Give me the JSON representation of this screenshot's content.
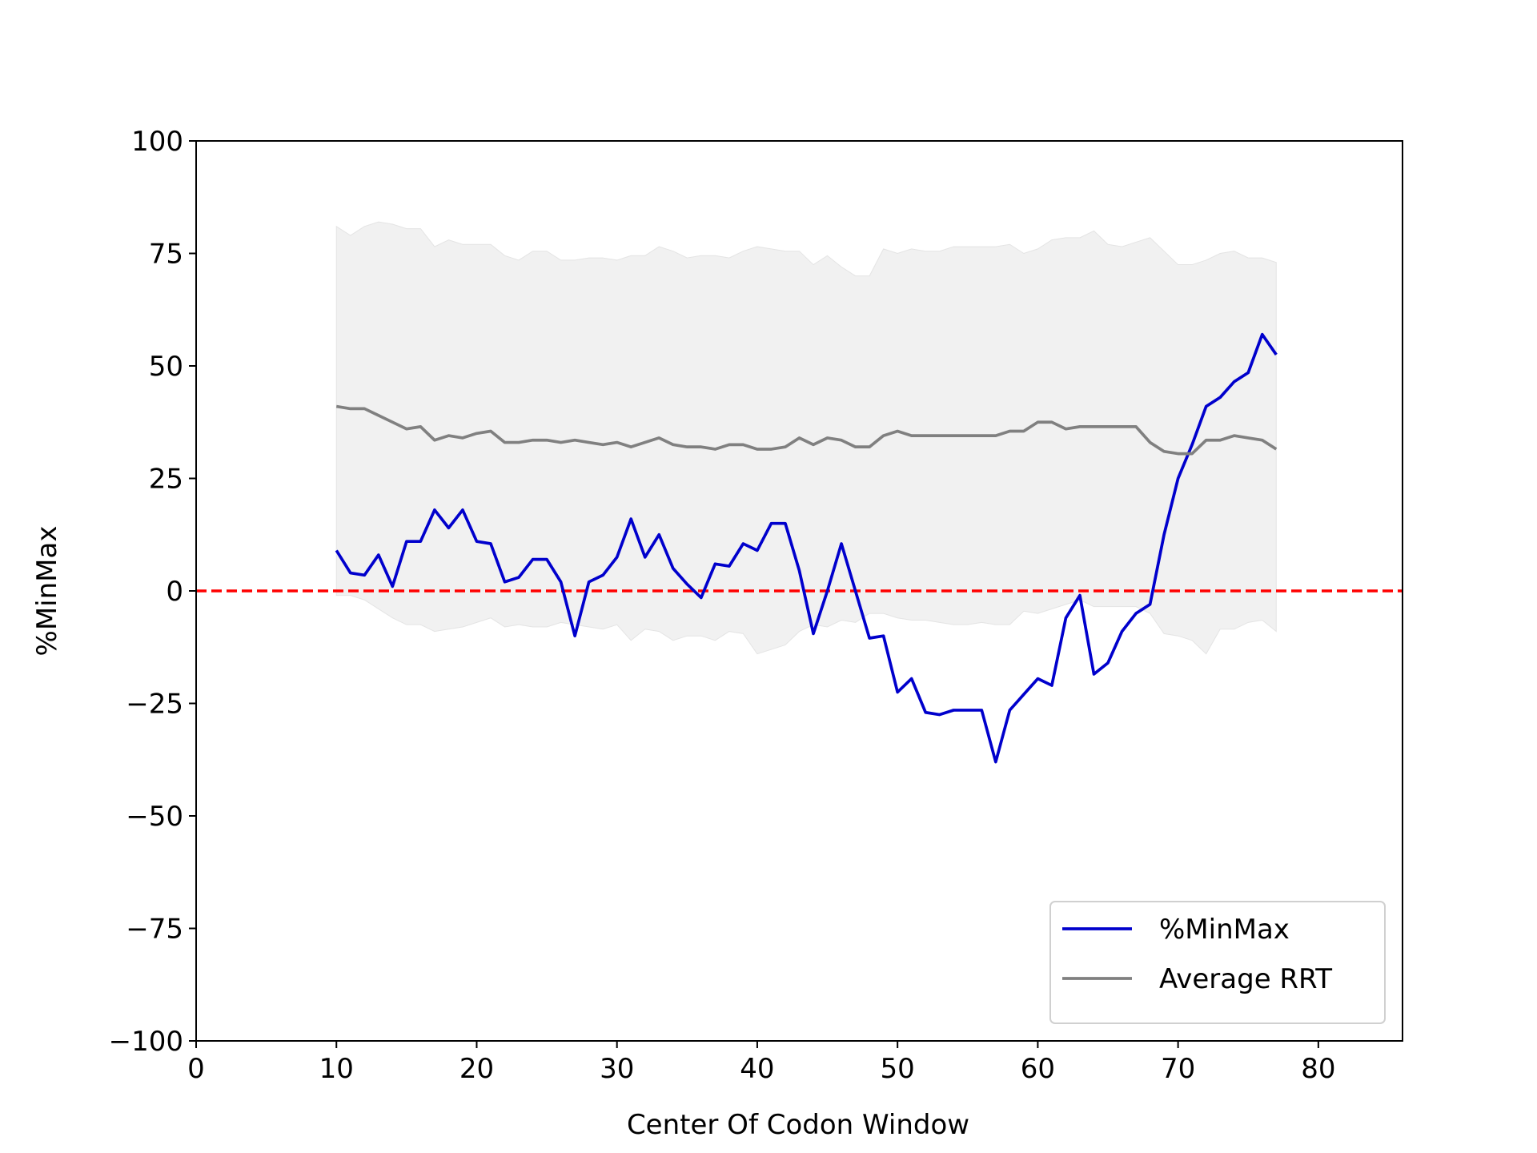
{
  "chart_data": {
    "type": "line",
    "x_label": "Center Of Codon Window",
    "y_label": "%MinMax",
    "xlim": [
      0,
      86
    ],
    "ylim": [
      -100,
      100
    ],
    "xticks": [
      0,
      10,
      20,
      30,
      40,
      50,
      60,
      70,
      80
    ],
    "yticks": [
      {
        "value": -100,
        "label": "−100"
      },
      {
        "value": -75,
        "label": "−75"
      },
      {
        "value": -50,
        "label": "−50"
      },
      {
        "value": -25,
        "label": "−25"
      },
      0,
      25,
      50,
      75,
      100
    ],
    "legend_position": "lower right",
    "x": [
      10,
      11,
      12,
      13,
      14,
      15,
      16,
      17,
      18,
      19,
      20,
      21,
      22,
      23,
      24,
      25,
      26,
      27,
      28,
      29,
      30,
      31,
      32,
      33,
      34,
      35,
      36,
      37,
      38,
      39,
      40,
      41,
      42,
      43,
      44,
      45,
      46,
      47,
      48,
      49,
      50,
      51,
      52,
      53,
      54,
      55,
      56,
      57,
      58,
      59,
      60,
      61,
      62,
      63,
      64,
      65,
      66,
      67,
      68,
      69,
      70,
      71,
      72,
      73,
      74,
      75,
      76,
      77
    ],
    "series": [
      {
        "name": "%MinMax",
        "color": "#0000cc",
        "values": [
          9,
          4,
          3.5,
          8,
          1,
          11,
          11,
          18,
          14,
          18,
          11,
          10.5,
          2,
          3,
          7,
          7,
          2,
          -10,
          2,
          3.5,
          7.5,
          16,
          7.5,
          12.5,
          5,
          1.5,
          -1.5,
          6,
          5.5,
          10.5,
          9,
          15,
          15,
          4.5,
          -9.5,
          0,
          10.5,
          0,
          -10.5,
          -10,
          -22.5,
          -19.5,
          -27,
          -27.5,
          -26.5,
          -26.5,
          -26.5,
          -38,
          -26.5,
          -23,
          -19.5,
          -21,
          -6,
          -1,
          -18.5,
          -16,
          -9,
          -5,
          -3,
          12.5,
          25,
          32.5,
          41,
          43,
          46.5,
          48.5,
          57,
          52.5
        ]
      },
      {
        "name": "Average RRT",
        "color": "#808080",
        "values": [
          41,
          40.5,
          40.5,
          39,
          37.5,
          36,
          36.5,
          33.5,
          34.5,
          34,
          35,
          35.5,
          33,
          33,
          33.5,
          33.5,
          33,
          33.5,
          33,
          32.5,
          33,
          32,
          33,
          34,
          32.5,
          32,
          32,
          31.5,
          32.5,
          32.5,
          31.5,
          31.5,
          32,
          34,
          32.5,
          34,
          33.5,
          32,
          32,
          34.5,
          35.5,
          34.5,
          34.5,
          34.5,
          34.5,
          34.5,
          34.5,
          34.5,
          35.5,
          35.5,
          37.5,
          37.5,
          36,
          36.5,
          36.5,
          36.5,
          36.5,
          36.5,
          33,
          31,
          30.5,
          30.5,
          33.5,
          33.5,
          34.5,
          34,
          33.5,
          31.5
        ]
      }
    ],
    "band": {
      "color": "#f1f1f1",
      "upper": [
        81,
        79,
        81,
        82,
        81.5,
        80.5,
        80.5,
        76.5,
        78,
        77,
        77,
        77,
        74.5,
        73.5,
        75.5,
        75.5,
        73.5,
        73.5,
        74,
        74,
        73.5,
        74.5,
        74.5,
        76.5,
        75.5,
        74,
        74.5,
        74.5,
        74,
        75.5,
        76.5,
        76,
        75.5,
        75.5,
        72.5,
        74.5,
        72,
        70,
        70,
        76,
        75,
        76,
        75.5,
        75.5,
        76.5,
        76.5,
        76.5,
        76.5,
        77,
        75,
        76,
        78,
        78.5,
        78.5,
        80,
        77,
        76.5,
        77.5,
        78.5,
        75.5,
        72.5,
        72.5,
        73.5,
        75,
        75.5,
        74,
        74,
        73
      ],
      "lower": [
        -1,
        -1,
        -2,
        -4,
        -6,
        -7.5,
        -7.5,
        -9,
        -8.5,
        -8,
        -7,
        -6,
        -8,
        -7.5,
        -8,
        -8,
        -7,
        -7.5,
        -8,
        -8.5,
        -7.5,
        -11,
        -8.5,
        -9,
        -11,
        -10,
        -10,
        -11,
        -9,
        -9.5,
        -14,
        -13,
        -12,
        -9,
        -7.5,
        -8,
        -6.5,
        -7,
        -5,
        -5,
        -6,
        -6.5,
        -6.5,
        -7,
        -7.5,
        -7.5,
        -7,
        -7.5,
        -7.5,
        -4.5,
        -5,
        -4,
        -3,
        -2,
        -3.5,
        -3.5,
        -3.5,
        -3.5,
        -5,
        -9.5,
        -10,
        -11,
        -14,
        -8.5,
        -8.5,
        -7,
        -6.5,
        -9
      ]
    },
    "hline": {
      "y": 0,
      "color": "#ff0000"
    }
  }
}
